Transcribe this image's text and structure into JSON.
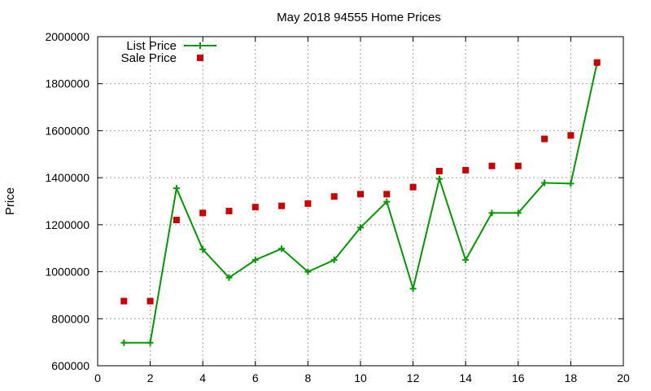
{
  "chart_data": {
    "type": "line",
    "title": "May 2018 94555 Home Prices",
    "xlabel": "",
    "ylabel": "Price",
    "xlim": [
      0,
      20
    ],
    "ylim": [
      600000,
      2000000
    ],
    "x_ticks": [
      "0",
      "2",
      "4",
      "6",
      "8",
      "10",
      "12",
      "14",
      "16",
      "18",
      "20"
    ],
    "y_ticks": [
      "600000",
      "800000",
      "1000000",
      "1200000",
      "1400000",
      "1600000",
      "1800000",
      "2000000"
    ],
    "grid": true,
    "legend_position": "top-left",
    "series": [
      {
        "name": "List Price",
        "style": "line-with-plus-markers",
        "color": "#009900",
        "x": [
          1,
          2,
          3,
          4,
          5,
          6,
          7,
          8,
          9,
          10,
          11,
          12,
          13,
          14,
          15,
          16,
          17,
          18,
          19
        ],
        "y": [
          698000,
          698000,
          1355000,
          1095000,
          975000,
          1050000,
          1098000,
          1000000,
          1050000,
          1188000,
          1298000,
          928000,
          1395000,
          1050000,
          1250000,
          1250000,
          1378000,
          1375000,
          1888000
        ]
      },
      {
        "name": "Sale Price",
        "style": "square-markers",
        "color": "#cc0000",
        "x": [
          1,
          2,
          3,
          4,
          5,
          6,
          7,
          8,
          9,
          10,
          11,
          12,
          13,
          14,
          15,
          16,
          17,
          18,
          19
        ],
        "y": [
          875000,
          875000,
          1220000,
          1250000,
          1258000,
          1275000,
          1280000,
          1290000,
          1320000,
          1330000,
          1330000,
          1360000,
          1428000,
          1432000,
          1450000,
          1450000,
          1565000,
          1580000,
          1890000
        ]
      }
    ]
  }
}
